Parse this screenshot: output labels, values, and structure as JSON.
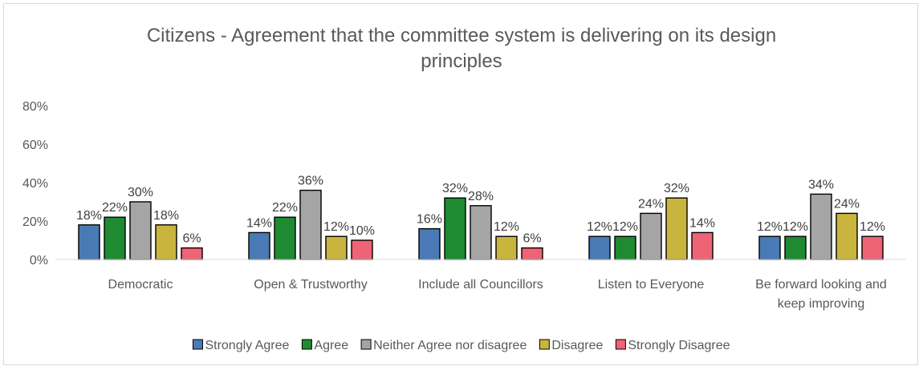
{
  "chart_data": {
    "type": "bar",
    "title": [
      "Citizens - Agreement that the committee system is delivering on its design",
      "principles"
    ],
    "categories": [
      [
        "Democratic"
      ],
      [
        "Open & Trustworthy"
      ],
      [
        "Include all Councillors"
      ],
      [
        "Listen to Everyone"
      ],
      [
        "Be forward looking and",
        "keep improving"
      ]
    ],
    "series": [
      {
        "name": "Strongly Agree",
        "color": "#4a7ab5",
        "values": [
          18,
          14,
          16,
          12,
          12
        ],
        "labels": [
          "18%",
          "14%",
          "16%",
          "12%",
          "12%"
        ]
      },
      {
        "name": "Agree",
        "color": "#1e8a32",
        "values": [
          22,
          22,
          32,
          12,
          12
        ],
        "labels": [
          "22%",
          "22%",
          "32%",
          "12%",
          "12%"
        ]
      },
      {
        "name": "Neither Agree nor disagree",
        "color": "#a5a5a5",
        "values": [
          30,
          36,
          28,
          24,
          34
        ],
        "labels": [
          "30%",
          "36%",
          "28%",
          "24%",
          "34%"
        ]
      },
      {
        "name": "Disagree",
        "color": "#c9b53e",
        "values": [
          18,
          12,
          12,
          32,
          24
        ],
        "labels": [
          "18%",
          "12%",
          "12%",
          "32%",
          "24%"
        ]
      },
      {
        "name": "Strongly Disagree",
        "color": "#ef6475",
        "values": [
          6,
          10,
          6,
          14,
          12
        ],
        "labels": [
          "6%",
          "10%",
          "6%",
          "14%",
          "12%"
        ]
      }
    ],
    "yticks": [
      "0%",
      "20%",
      "40%",
      "60%",
      "80%"
    ],
    "ylim": [
      0,
      80
    ],
    "legend": "bottom",
    "grid": false
  }
}
